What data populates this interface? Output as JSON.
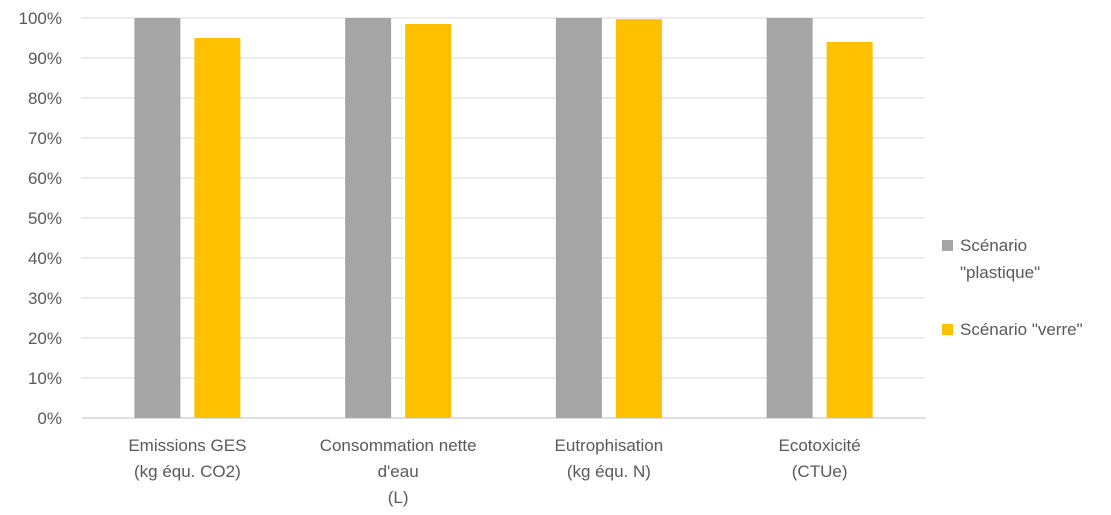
{
  "chart_data": {
    "type": "bar",
    "categories": [
      [
        "Emissions GES",
        "(kg équ. CO2)"
      ],
      [
        "Consommation nette",
        "d'eau",
        "(L)"
      ],
      [
        "Eutrophisation",
        "(kg équ. N)"
      ],
      [
        "Ecotoxicité",
        "(CTUe)"
      ]
    ],
    "series": [
      {
        "name": "Scénario \"plastique\"",
        "legend_lines": [
          "Scénario",
          "\"plastique\""
        ],
        "color": "#A5A5A5",
        "values": [
          100,
          100,
          100,
          100
        ]
      },
      {
        "name": "Scénario \"verre\"",
        "legend_lines": [
          "Scénario \"verre\""
        ],
        "color": "#FFC000",
        "values": [
          95,
          98.5,
          99.7,
          94
        ]
      }
    ],
    "ylim": [
      0,
      100
    ],
    "yticks": [
      "0%",
      "10%",
      "20%",
      "30%",
      "40%",
      "50%",
      "60%",
      "70%",
      "80%",
      "90%",
      "100%"
    ],
    "grid": true,
    "legend_position": "right"
  }
}
